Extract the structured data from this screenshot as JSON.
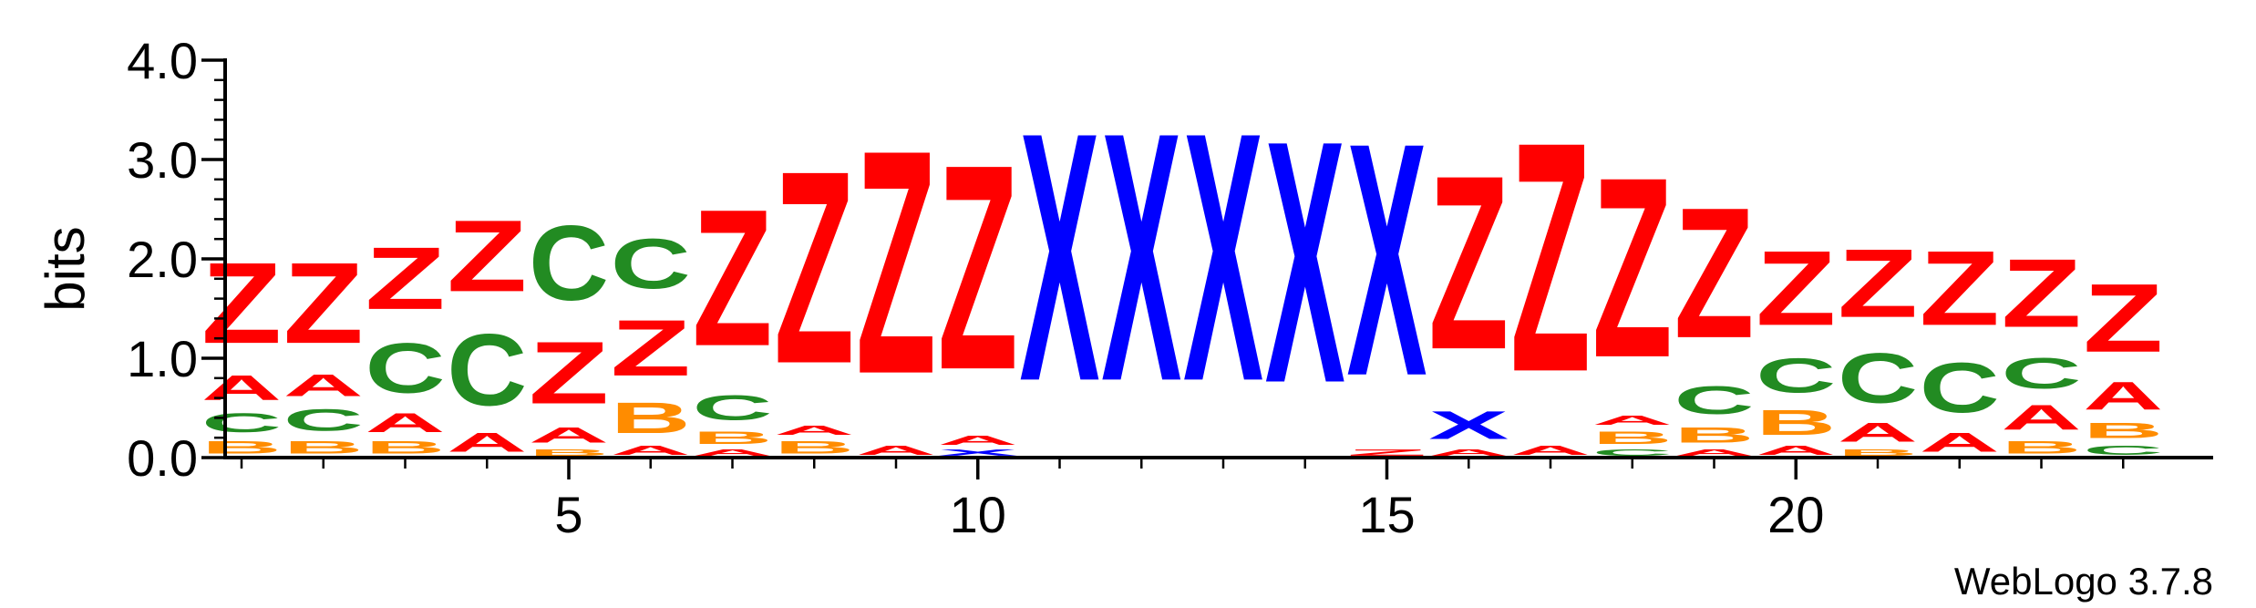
{
  "chart_data": {
    "type": "sequence-logo",
    "ylabel": "bits",
    "ylim": [
      0,
      4.0
    ],
    "y_ticks": [
      0.0,
      1.0,
      2.0,
      3.0,
      4.0
    ],
    "y_tick_labels": [
      "0.0",
      "1.0",
      "2.0",
      "3.0",
      "4.0"
    ],
    "x_ticks": [
      5,
      10,
      15,
      20
    ],
    "x_tick_labels": [
      "5",
      "10",
      "15",
      "20"
    ],
    "positions": [
      1,
      2,
      3,
      4,
      5,
      6,
      7,
      8,
      9,
      10,
      11,
      12,
      13,
      14,
      15,
      16,
      17,
      18,
      19,
      20,
      21,
      22,
      23,
      24
    ],
    "colors": {
      "Z": "#ff0000",
      "A": "#ff0000",
      "C": "#228b22",
      "B": "#ff8c00",
      "X": "#0000ff"
    },
    "stacks": [
      [
        {
          "l": "B",
          "h": 0.2
        },
        {
          "l": "C",
          "h": 0.3
        },
        {
          "l": "A",
          "h": 0.4
        },
        {
          "l": "Z",
          "h": 1.3
        }
      ],
      [
        {
          "l": "B",
          "h": 0.2
        },
        {
          "l": "C",
          "h": 0.35
        },
        {
          "l": "A",
          "h": 0.35
        },
        {
          "l": "Z",
          "h": 1.3
        }
      ],
      [
        {
          "l": "B",
          "h": 0.2
        },
        {
          "l": "A",
          "h": 0.3
        },
        {
          "l": "C",
          "h": 0.8
        },
        {
          "l": "Z",
          "h": 1.0
        }
      ],
      [
        {
          "l": "A",
          "h": 0.3
        },
        {
          "l": "C",
          "h": 1.15
        },
        {
          "l": "Z",
          "h": 1.15
        }
      ],
      [
        {
          "l": "B",
          "h": 0.1
        },
        {
          "l": "A",
          "h": 0.25
        },
        {
          "l": "Z",
          "h": 1.0
        },
        {
          "l": "C",
          "h": 1.2
        }
      ],
      [
        {
          "l": "A",
          "h": 0.15
        },
        {
          "l": "B",
          "h": 0.5
        },
        {
          "l": "Z",
          "h": 0.9
        },
        {
          "l": "C",
          "h": 0.8
        }
      ],
      [
        {
          "l": "A",
          "h": 0.1
        },
        {
          "l": "B",
          "h": 0.2
        },
        {
          "l": "C",
          "h": 0.4
        },
        {
          "l": "Z",
          "h": 2.2
        }
      ],
      [
        {
          "l": "B",
          "h": 0.2
        },
        {
          "l": "A",
          "h": 0.15
        },
        {
          "l": "Z",
          "h": 3.1
        }
      ],
      [
        {
          "l": "A",
          "h": 0.15
        },
        {
          "l": "Z",
          "h": 3.6
        }
      ],
      [
        {
          "l": "X",
          "h": 0.1
        },
        {
          "l": "A",
          "h": 0.15
        },
        {
          "l": "Z",
          "h": 3.3
        }
      ],
      [
        {
          "l": "X",
          "h": 4.0
        }
      ],
      [
        {
          "l": "X",
          "h": 4.0
        }
      ],
      [
        {
          "l": "X",
          "h": 4.0
        }
      ],
      [
        {
          "l": "X",
          "h": 3.9
        }
      ],
      [
        {
          "l": "Z",
          "h": 0.1
        },
        {
          "l": "X",
          "h": 3.75
        }
      ],
      [
        {
          "l": "A",
          "h": 0.1
        },
        {
          "l": "X",
          "h": 0.45
        },
        {
          "l": "Z",
          "h": 2.8
        }
      ],
      [
        {
          "l": "A",
          "h": 0.15
        },
        {
          "l": "Z",
          "h": 3.7
        }
      ],
      [
        {
          "l": "C",
          "h": 0.1
        },
        {
          "l": "B",
          "h": 0.2
        },
        {
          "l": "A",
          "h": 0.15
        },
        {
          "l": "Z",
          "h": 2.9
        }
      ],
      [
        {
          "l": "A",
          "h": 0.1
        },
        {
          "l": "B",
          "h": 0.25
        },
        {
          "l": "C",
          "h": 0.45
        },
        {
          "l": "Z",
          "h": 2.1
        }
      ],
      [
        {
          "l": "A",
          "h": 0.15
        },
        {
          "l": "B",
          "h": 0.4
        },
        {
          "l": "C",
          "h": 0.55
        },
        {
          "l": "Z",
          "h": 1.2
        }
      ],
      [
        {
          "l": "B",
          "h": 0.1
        },
        {
          "l": "A",
          "h": 0.3
        },
        {
          "l": "C",
          "h": 0.8
        },
        {
          "l": "Z",
          "h": 1.1
        }
      ],
      [
        {
          "l": "A",
          "h": 0.3
        },
        {
          "l": "C",
          "h": 0.8
        },
        {
          "l": "Z",
          "h": 1.2
        }
      ],
      [
        {
          "l": "B",
          "h": 0.2
        },
        {
          "l": "A",
          "h": 0.4
        },
        {
          "l": "C",
          "h": 0.5
        },
        {
          "l": "Z",
          "h": 1.1
        }
      ],
      [
        {
          "l": "C",
          "h": 0.15
        },
        {
          "l": "B",
          "h": 0.25
        },
        {
          "l": "A",
          "h": 0.45
        },
        {
          "l": "Z",
          "h": 1.1
        }
      ]
    ]
  },
  "watermark": "WebLogo 3.7.8"
}
